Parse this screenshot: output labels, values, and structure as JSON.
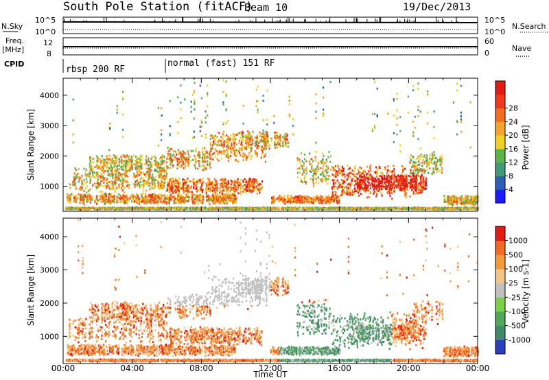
{
  "header": {
    "station": "South Pole Station (fitACF)",
    "beam": "Beam 10",
    "date": "19/Dec/2013"
  },
  "strips": {
    "nsky_label": "N.Sky",
    "nsky_ticks": [
      "10^5",
      "10^0"
    ],
    "nsearch_label": "N.Search",
    "nsearch_ticks": [
      "10^5",
      "10^0"
    ],
    "freq_label_line1": "Freq.",
    "freq_label_line2": "[MHz]",
    "freq_ticks": [
      "12",
      "8"
    ],
    "nave_label": "Nave",
    "nave_ticks": [
      "60",
      "0"
    ],
    "cpid_label": "CPID",
    "cpid_segments": [
      {
        "label": "rbsp 200 RF",
        "start_hour": 0
      },
      {
        "label": "normal (fast) 151 RF",
        "start_hour": 6
      }
    ]
  },
  "chart_data": [
    {
      "type": "heatmap",
      "parameter": "Power",
      "ylabel": "Slant Range [km]",
      "xlabel": "Time UT",
      "xlim": [
        0,
        24
      ],
      "ylim": [
        180,
        4560
      ],
      "yticks": [
        "1000",
        "2000",
        "3000",
        "4000"
      ],
      "xticks": [
        "00:00",
        "04:00",
        "08:00",
        "12:00",
        "16:00",
        "20:00",
        "00:00"
      ],
      "colorbar": {
        "label": "Power [dB]",
        "ticks": [
          "4",
          "8",
          "12",
          "16",
          "20",
          "24",
          "28"
        ],
        "colors": [
          "#1a1aff",
          "#2e5fb8",
          "#3f9a7a",
          "#5db24a",
          "#f0d020",
          "#f3a52a",
          "#f36f20",
          "#ee3a1b",
          "#e21a14"
        ]
      }
    },
    {
      "type": "heatmap",
      "parameter": "Velocity",
      "ylabel": "Slant Range [km]",
      "xlabel": "Time UT",
      "xlim": [
        0,
        24
      ],
      "ylim": [
        180,
        4560
      ],
      "yticks": [
        "1000",
        "2000",
        "3000",
        "4000"
      ],
      "xticks": [
        "00:00",
        "04:00",
        "08:00",
        "12:00",
        "16:00",
        "20:00",
        "00:00"
      ],
      "colorbar": {
        "label": "Velocity [m s-1]",
        "ticks": [
          "1000",
          "500",
          "100",
          "25",
          "-25",
          "-100",
          "-500",
          "-1000"
        ],
        "colors": [
          "#2a3fc0",
          "#3f8c6a",
          "#4fa85a",
          "#7bd04a",
          "#c0c0c0",
          "#f3c58a",
          "#f39a3c",
          "#f36a20",
          "#e21a14"
        ]
      }
    }
  ],
  "axis_title": "Time UT"
}
